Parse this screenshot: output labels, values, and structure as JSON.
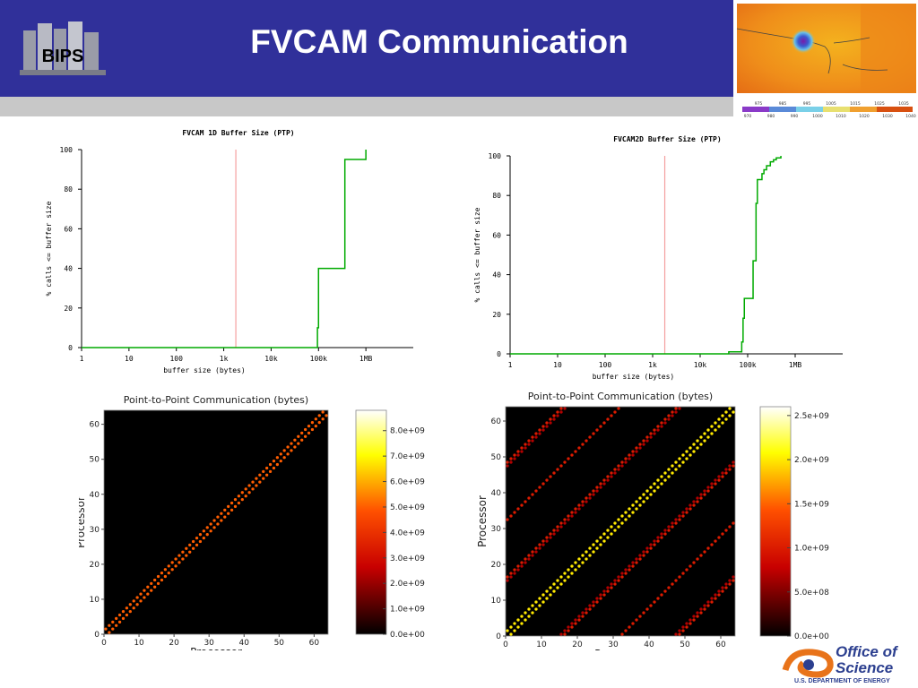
{
  "slide": {
    "title": "FVCAM Communication",
    "logo_text": "BIPS",
    "office_line1": "Office of",
    "office_line2": "Science",
    "office_line3": "U.S. DEPARTMENT OF ENERGY"
  },
  "colors": {
    "header": "#30309a",
    "stripe": "#c8c8c8",
    "cdf_line": "#00aa00",
    "cdf_marker": "#f4a0a0",
    "office_orange": "#e8731a",
    "office_blue": "#2c3f8f"
  },
  "map_legend": {
    "top_ticks": [
      "975",
      "985",
      "995",
      "1005",
      "1015",
      "1025",
      "1035"
    ],
    "bottom_ticks": [
      "970",
      "980",
      "990",
      "1000",
      "1010",
      "1020",
      "1030",
      "1040"
    ]
  },
  "chart_data": [
    {
      "type": "line",
      "title": "FVCAM 1D Buffer Size (PTP)",
      "xlabel": "buffer size (bytes)",
      "ylabel": "% calls <= buffer size",
      "xscale": "log",
      "x_ticks": [
        1,
        10,
        100,
        1000,
        10000,
        100000,
        1000000
      ],
      "x_tick_labels": [
        "1",
        "10",
        "100",
        "1k",
        "10k",
        "100k",
        "1MB"
      ],
      "y_ticks": [
        0,
        20,
        40,
        60,
        80,
        100
      ],
      "xlim": [
        1,
        10000000
      ],
      "ylim": [
        0,
        100
      ],
      "marker_x": 1800,
      "series": [
        {
          "points": [
            [
              1,
              0
            ],
            [
              90000,
              0
            ],
            [
              95000,
              10
            ],
            [
              100000,
              40
            ],
            [
              350000,
              40
            ],
            [
              360000,
              95
            ],
            [
              1000000,
              95
            ],
            [
              1000000,
              100
            ]
          ]
        }
      ]
    },
    {
      "type": "line",
      "title": "FVCAM2D Buffer Size (PTP)",
      "xlabel": "buffer size (bytes)",
      "ylabel": "% calls <= buffer size",
      "xscale": "log",
      "x_ticks": [
        1,
        10,
        100,
        1000,
        10000,
        100000,
        1000000
      ],
      "x_tick_labels": [
        "1",
        "10",
        "100",
        "1k",
        "10k",
        "100k",
        "1MB"
      ],
      "y_ticks": [
        0,
        20,
        40,
        60,
        80,
        100
      ],
      "xlim": [
        1,
        10000000
      ],
      "ylim": [
        0,
        100
      ],
      "marker_x": 1800,
      "series": [
        {
          "points": [
            [
              1,
              0
            ],
            [
              30000,
              0
            ],
            [
              40000,
              1
            ],
            [
              70000,
              1
            ],
            [
              75000,
              6
            ],
            [
              80000,
              18
            ],
            [
              85000,
              28
            ],
            [
              90000,
              28
            ],
            [
              120000,
              28
            ],
            [
              130000,
              47
            ],
            [
              140000,
              47
            ],
            [
              150000,
              76
            ],
            [
              160000,
              88
            ],
            [
              180000,
              88
            ],
            [
              200000,
              91
            ],
            [
              220000,
              93
            ],
            [
              250000,
              95
            ],
            [
              300000,
              97
            ],
            [
              350000,
              98
            ],
            [
              400000,
              99
            ],
            [
              500000,
              100
            ]
          ]
        }
      ]
    },
    {
      "type": "heatmap",
      "title": "Point-to-Point Communication (bytes)",
      "xlabel": "Processor",
      "ylabel": "Processor",
      "n": 64,
      "x_ticks": [
        0,
        10,
        20,
        30,
        40,
        50,
        60
      ],
      "y_ticks": [
        0,
        10,
        20,
        30,
        40,
        50,
        60
      ],
      "colorbar_ticks": [
        "0.0e+00",
        "1.0e+09",
        "2.0e+09",
        "3.0e+09",
        "4.0e+09",
        "5.0e+09",
        "6.0e+09",
        "7.0e+09",
        "8.0e+09"
      ],
      "colorbar_max": 8800000000.0,
      "offsets": [
        {
          "offset": 1,
          "value": 5000000000.0
        }
      ]
    },
    {
      "type": "heatmap",
      "title": "Point-to-Point Communication (bytes)",
      "xlabel": "Processor",
      "ylabel": "Processor",
      "n": 64,
      "x_ticks": [
        0,
        10,
        20,
        30,
        40,
        50,
        60
      ],
      "y_ticks": [
        0,
        10,
        20,
        30,
        40,
        50,
        60
      ],
      "colorbar_ticks": [
        "0.0e+00",
        "5.0e+08",
        "1.0e+09",
        "1.5e+09",
        "2.0e+09",
        "2.5e+09"
      ],
      "colorbar_max": 2600000000.0,
      "offsets": [
        {
          "offset": 1,
          "value": 2000000000.0
        },
        {
          "offset": 16,
          "value": 1000000000.0
        },
        {
          "offset": 32,
          "value": 1000000000.0
        },
        {
          "offset": 48,
          "value": 1000000000.0
        },
        {
          "offset": 15,
          "value": 700000000.0
        },
        {
          "offset": 47,
          "value": 700000000.0
        }
      ]
    }
  ]
}
